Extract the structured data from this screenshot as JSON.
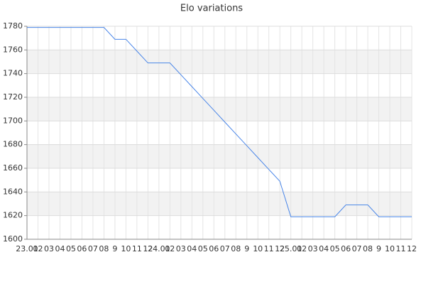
{
  "chart_data": {
    "type": "line",
    "title": "Elo variations",
    "categories": [
      "23.01",
      "02",
      "03",
      "04",
      "05",
      "06",
      "07",
      "08",
      "9",
      "10",
      "11",
      "12",
      "24.01",
      "02",
      "03",
      "04",
      "05",
      "06",
      "07",
      "08",
      "9",
      "10",
      "11",
      "12",
      "25.01",
      "02",
      "03",
      "04",
      "05",
      "06",
      "07",
      "08",
      "9",
      "10",
      "11",
      "12"
    ],
    "series": [
      {
        "name": "Elo",
        "color": "#4a86e8",
        "values": [
          1779,
          1779,
          1779,
          1779,
          1779,
          1779,
          1779,
          1779,
          1769,
          1769,
          1759,
          1749,
          1749,
          1749,
          1739,
          1729,
          1719,
          1709,
          1699,
          1689,
          1679,
          1669,
          1659,
          1649,
          1619,
          1619,
          1619,
          1619,
          1619,
          1629,
          1629,
          1629,
          1619,
          1619,
          1619,
          1619
        ]
      }
    ],
    "ylim": [
      1600,
      1780
    ],
    "yticks": [
      1600,
      1620,
      1640,
      1660,
      1680,
      1700,
      1720,
      1740,
      1760,
      1780
    ],
    "grid": true
  }
}
